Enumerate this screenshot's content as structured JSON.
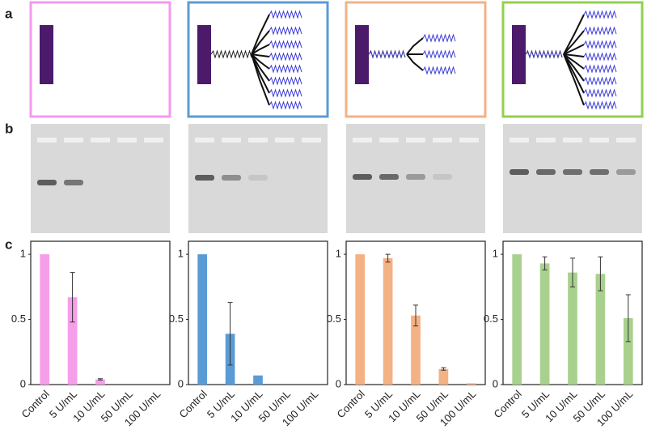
{
  "panel_labels": [
    "a",
    "b",
    "c"
  ],
  "chart_data": [
    {
      "type": "bar",
      "color": "#f59ee9",
      "categories": [
        "Control",
        "5 U/mL",
        "10 U/mL",
        "50 U/mL",
        "100 U/mL"
      ],
      "values": [
        1,
        0.67,
        0.04,
        0,
        0
      ],
      "errors": [
        null,
        0.19,
        0.005,
        null,
        null
      ],
      "ylim": [
        0,
        1.1
      ],
      "yticks": [
        0,
        0.5,
        1
      ]
    },
    {
      "type": "bar",
      "color": "#5b9bd5",
      "categories": [
        "Control",
        "5 U/mL",
        "10 U/mL",
        "50 U/mL",
        "100 U/mL"
      ],
      "values": [
        1,
        0.39,
        0.07,
        0,
        0
      ],
      "errors": [
        null,
        0.24,
        null,
        null,
        null
      ],
      "ylim": [
        0,
        1.1
      ],
      "yticks": [
        0,
        0.5,
        1
      ]
    },
    {
      "type": "bar",
      "color": "#f4b183",
      "categories": [
        "Control",
        "5 U/mL",
        "10 U/mL",
        "50 U/mL",
        "100 U/mL"
      ],
      "values": [
        1,
        0.97,
        0.53,
        0.12,
        0.01
      ],
      "errors": [
        null,
        0.03,
        0.08,
        0.01,
        null
      ],
      "ylim": [
        0,
        1.1
      ],
      "yticks": [
        0,
        0.5,
        1
      ]
    },
    {
      "type": "bar",
      "color": "#a9d18e",
      "categories": [
        "Control",
        "5 U/mL",
        "10 U/mL",
        "50 U/mL",
        "100 U/mL"
      ],
      "values": [
        1,
        0.93,
        0.86,
        0.85,
        0.51
      ],
      "errors": [
        null,
        0.05,
        0.11,
        0.13,
        0.18
      ],
      "ylim": [
        0,
        1.1
      ],
      "yticks": [
        0,
        0.5,
        1
      ]
    }
  ]
}
